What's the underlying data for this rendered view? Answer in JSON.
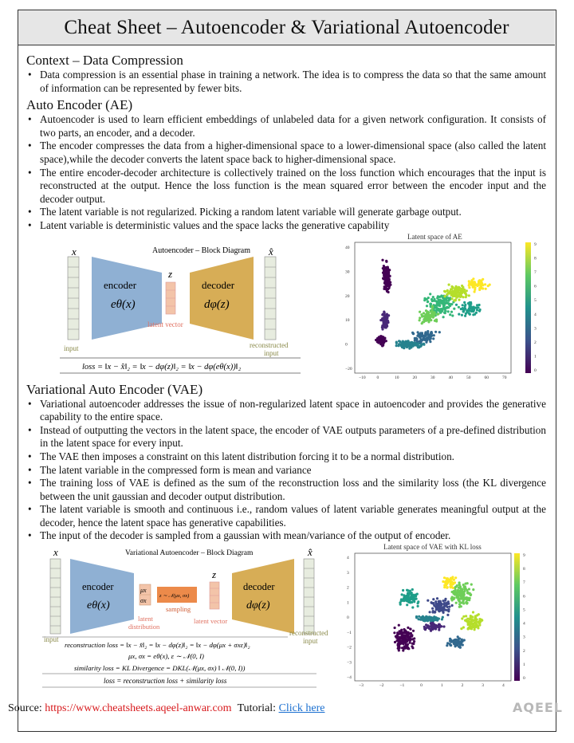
{
  "title": "Cheat Sheet – Autoencoder & Variational Autoencoder",
  "context": {
    "heading": "Context – Data Compression",
    "bullets": [
      "Data compression is an essential phase in training a network. The idea is to compress the data so that the same amount of information can be represented by fewer bits."
    ]
  },
  "ae": {
    "heading": "Auto Encoder (AE)",
    "bullets": [
      "Autoencoder is used to learn efficient embeddings of unlabeled data for a given network configuration. It consists of two parts, an encoder, and a decoder.",
      "The encoder compresses the data from a higher-dimensional space to a lower-dimensional space (also called the latent space),while the decoder converts the latent space back to higher-dimensional space.",
      "The entire encoder-decoder architecture is collectively trained on the loss function which encourages that the input is reconstructed at the output. Hence the loss function is the mean squared error between the encoder input and the decoder output.",
      "The latent variable is not regularized. Picking a random latent variable will generate garbage output.",
      "Latent variable is deterministic values and the space lacks the generative capability"
    ],
    "diagram": {
      "title": "Autoencoder – Block Diagram",
      "x": "x",
      "xhat": "x̂",
      "z": "z",
      "encoder": "encoder",
      "encoder_fn": "eθ(x)",
      "decoder": "decoder",
      "decoder_fn": "dφ(z)",
      "latent": "latent vector",
      "input": "input",
      "recon1": "reconstructed",
      "recon2": "input",
      "loss": "loss = ‖x − x̂‖₂ = ‖x − dφ(z)‖₂ = ‖x − dφ(eθ(x))‖₂"
    },
    "scatter_title": "Latent space of AE",
    "xticks": [
      "−10",
      "0",
      "10",
      "20",
      "30",
      "40",
      "50",
      "60",
      "70"
    ],
    "yticks": [
      "−20",
      "0",
      "10",
      "20",
      "30",
      "40"
    ],
    "cbar": [
      "0",
      "1",
      "2",
      "3",
      "4",
      "5",
      "6",
      "7",
      "8",
      "9"
    ]
  },
  "vae": {
    "heading": "Variational Auto Encoder (VAE)",
    "bullets": [
      "Variational autoencoder addresses the issue of non-regularized latent space in autoencoder and provides the generative capability to the entire space.",
      "Instead of outputting the vectors in the latent space, the encoder of VAE outputs parameters of a pre-defined distribution in the latent space for every input.",
      "The VAE then imposes a constraint on this latent distribution forcing it to be a normal distribution.",
      "The latent variable in the compressed form is mean and variance",
      "The training loss of VAE is defined as the sum of the reconstruction loss and the similarity loss (the KL divergence between the unit gaussian and decoder output distribution.",
      "The latent variable is smooth and continuous i.e., random values of latent variable generates meaningful output at the decoder, hence the latent space has generative capabilities.",
      "The input of the decoder is sampled from a gaussian with mean/variance of the output of encoder."
    ],
    "diagram": {
      "title": "Variational Autoencoder – Block Diagram",
      "x": "x",
      "xhat": "x̂",
      "z": "z",
      "encoder": "encoder",
      "encoder_fn": "eθ(x)",
      "decoder": "decoder",
      "decoder_fn": "dφ(z)",
      "mu": "μx",
      "sigma": "σx",
      "sampling_eq": "z ∼ 𝒩(μx, σx)",
      "sampling": "sampling",
      "latent_dist1": "latent",
      "latent_dist2": "distribution",
      "latent_vec": "latent vector",
      "input": "input",
      "recon1": "reconstructed",
      "recon2": "input",
      "recon_loss": "reconstruction loss = ‖x − x̂‖₂ = ‖x − dφ(z)‖₂ = ‖x − dφ(μx + σxε)‖₂",
      "eq2": "μx, σx = eθ(x),     ε ∼ 𝒩(0, I)",
      "sim_loss": "similarity loss = KL Divergence = DKL(𝒩(μx, σx) ‖ 𝒩(0, I))",
      "total_loss": "loss = reconstruction loss + similarity loss"
    },
    "scatter_title": "Latent space of VAE with KL loss",
    "xticks": [
      "−3",
      "−2",
      "−1",
      "0",
      "1",
      "2",
      "3",
      "4"
    ],
    "yticks": [
      "−4",
      "−3",
      "−2",
      "−1",
      "0",
      "1",
      "2",
      "3",
      "4"
    ],
    "cbar": [
      "0",
      "1",
      "2",
      "3",
      "4",
      "5",
      "6",
      "7",
      "8",
      "9"
    ]
  },
  "footer": {
    "source_label": "Source:",
    "source_url": "https://www.cheatsheets.aqeel-anwar.com",
    "tutorial_label": "Tutorial:",
    "tutorial_link": "Click here",
    "logo": "AQEEL"
  }
}
